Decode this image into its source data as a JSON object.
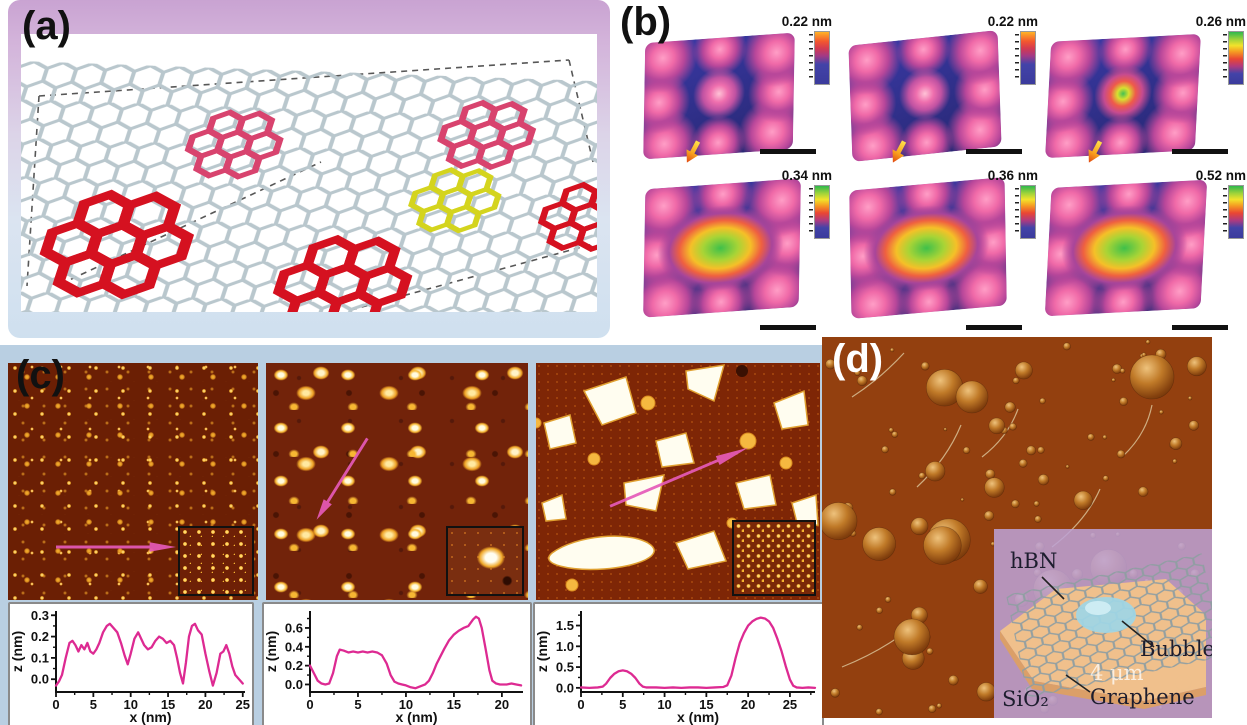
{
  "panel_a": {
    "label": "(a)"
  },
  "panel_b": {
    "label": "(b)",
    "images": [
      {
        "scale_label": "0.22 nm",
        "colorbar": "hot",
        "center_feature": "small"
      },
      {
        "scale_label": "0.22 nm",
        "colorbar": "hot",
        "center_feature": "small"
      },
      {
        "scale_label": "0.26 nm",
        "colorbar": "rainbow",
        "center_feature": "ring"
      },
      {
        "scale_label": "0.34 nm",
        "colorbar": "rainbow",
        "center_feature": "mound"
      },
      {
        "scale_label": "0.36 nm",
        "colorbar": "rainbow",
        "center_feature": "mound"
      },
      {
        "scale_label": "0.52 nm",
        "colorbar": "rainbow",
        "center_feature": "mound"
      }
    ]
  },
  "panel_c": {
    "label": "(c)"
  },
  "panel_d": {
    "label": "(d)",
    "inset": {
      "hbn_label": "hBN",
      "bubble_label": "Bubble",
      "graphene_label": "Graphene",
      "substrate_label": "SiO₂",
      "scale_text": "4 μm"
    }
  },
  "colors": {
    "profile_line": "#dd2a92",
    "afm_gold": "#f7b733",
    "afm_background": "#72230a",
    "stm_background": "#3a3aa8",
    "panel_d_background": "#93400f",
    "inset_lavender": "#bda2d6",
    "hbn_orange": "#f2c289",
    "bubble_cyan": "#a8dce8",
    "panel_c_background": "#b9cfe2"
  },
  "chart_data": [
    {
      "type": "line",
      "title": "",
      "xlabel": "x (nm)",
      "ylabel": "z (nm)",
      "xlim": [
        0,
        25.3
      ],
      "ylim": [
        -0.06,
        0.32
      ],
      "xticks": [
        0,
        5,
        10,
        15,
        20,
        25
      ],
      "yticks": [
        0.0,
        0.1,
        0.2,
        0.3
      ],
      "line_color": "#dd2a92",
      "grid": false,
      "legend": "none",
      "points": [
        [
          0,
          -0.03
        ],
        [
          0.4,
          -0.01
        ],
        [
          0.8,
          0.02
        ],
        [
          1.3,
          0.1
        ],
        [
          1.8,
          0.17
        ],
        [
          2.2,
          0.18
        ],
        [
          2.6,
          0.16
        ],
        [
          3,
          0.13
        ],
        [
          3.4,
          0.16
        ],
        [
          3.8,
          0.14
        ],
        [
          4.2,
          0.17
        ],
        [
          4.6,
          0.13
        ],
        [
          5,
          0.12
        ],
        [
          5.4,
          0.14
        ],
        [
          5.8,
          0.17
        ],
        [
          6.3,
          0.22
        ],
        [
          6.8,
          0.25
        ],
        [
          7.2,
          0.26
        ],
        [
          7.7,
          0.24
        ],
        [
          8.2,
          0.22
        ],
        [
          8.7,
          0.17
        ],
        [
          9.2,
          0.11
        ],
        [
          9.6,
          0.07
        ],
        [
          10,
          0.12
        ],
        [
          10.5,
          0.19
        ],
        [
          11,
          0.22
        ],
        [
          11.4,
          0.19
        ],
        [
          11.8,
          0.16
        ],
        [
          12.3,
          0.14
        ],
        [
          12.8,
          0.15
        ],
        [
          13.3,
          0.18
        ],
        [
          13.8,
          0.2
        ],
        [
          14.3,
          0.19
        ],
        [
          14.8,
          0.17
        ],
        [
          15.3,
          0.18
        ],
        [
          15.8,
          0.16
        ],
        [
          16.2,
          0.1
        ],
        [
          16.6,
          0.03
        ],
        [
          17,
          -0.02
        ],
        [
          17.4,
          0.08
        ],
        [
          17.8,
          0.2
        ],
        [
          18.2,
          0.25
        ],
        [
          18.6,
          0.26
        ],
        [
          19,
          0.23
        ],
        [
          19.5,
          0.21
        ],
        [
          20,
          0.12
        ],
        [
          20.5,
          0.04
        ],
        [
          21,
          -0.03
        ],
        [
          21.5,
          0.03
        ],
        [
          22,
          0.12
        ],
        [
          22.4,
          0.13
        ],
        [
          22.8,
          0.16
        ],
        [
          23.2,
          0.12
        ],
        [
          23.6,
          0.06
        ],
        [
          24,
          0.02
        ],
        [
          24.5,
          0
        ],
        [
          25,
          -0.02
        ]
      ]
    },
    {
      "type": "line",
      "title": "",
      "xlabel": "x (nm)",
      "ylabel": "z (nm)",
      "xlim": [
        0,
        22.2
      ],
      "ylim": [
        -0.08,
        0.78
      ],
      "xticks": [
        0,
        5,
        10,
        15,
        20
      ],
      "yticks": [
        0.0,
        0.2,
        0.4,
        0.6
      ],
      "line_color": "#dd2a92",
      "grid": false,
      "legend": "none",
      "points": [
        [
          0,
          0.2
        ],
        [
          0.4,
          0.12
        ],
        [
          0.8,
          0.04
        ],
        [
          1.2,
          0.01
        ],
        [
          1.6,
          0
        ],
        [
          2,
          0.01
        ],
        [
          2.4,
          0.12
        ],
        [
          2.8,
          0.3
        ],
        [
          3.1,
          0.37
        ],
        [
          3.5,
          0.36
        ],
        [
          4,
          0.34
        ],
        [
          4.5,
          0.35
        ],
        [
          5,
          0.34
        ],
        [
          5.5,
          0.35
        ],
        [
          6,
          0.34
        ],
        [
          6.5,
          0.35
        ],
        [
          7,
          0.34
        ],
        [
          7.5,
          0.31
        ],
        [
          8,
          0.22
        ],
        [
          8.4,
          0.1
        ],
        [
          8.8,
          0.03
        ],
        [
          9.2,
          0.01
        ],
        [
          9.6,
          0
        ],
        [
          10,
          -0.01
        ],
        [
          10.5,
          -0.03
        ],
        [
          11,
          -0.04
        ],
        [
          11.5,
          -0.02
        ],
        [
          12,
          0
        ],
        [
          12.4,
          0.04
        ],
        [
          12.8,
          0.12
        ],
        [
          13.2,
          0.22
        ],
        [
          13.6,
          0.3
        ],
        [
          14,
          0.38
        ],
        [
          14.5,
          0.47
        ],
        [
          15,
          0.53
        ],
        [
          15.5,
          0.57
        ],
        [
          16,
          0.6
        ],
        [
          16.5,
          0.62
        ],
        [
          17,
          0.69
        ],
        [
          17.3,
          0.72
        ],
        [
          17.6,
          0.7
        ],
        [
          17.9,
          0.6
        ],
        [
          18.3,
          0.38
        ],
        [
          18.7,
          0.15
        ],
        [
          19,
          0.04
        ],
        [
          19.4,
          0.01
        ],
        [
          19.8,
          0
        ],
        [
          20.5,
          0
        ],
        [
          21,
          0.01
        ],
        [
          21.5,
          0
        ],
        [
          22,
          -0.01
        ]
      ]
    },
    {
      "type": "line",
      "title": "",
      "xlabel": "x (nm)",
      "ylabel": "z (nm)",
      "xlim": [
        0,
        28
      ],
      "ylim": [
        -0.1,
        1.85
      ],
      "xticks": [
        0,
        5,
        10,
        15,
        20,
        25
      ],
      "yticks": [
        0.0,
        0.5,
        1.0,
        1.5
      ],
      "line_color": "#dd2a92",
      "grid": false,
      "legend": "none",
      "points": [
        [
          0,
          0.01
        ],
        [
          1,
          0
        ],
        [
          2,
          0.01
        ],
        [
          2.6,
          0.03
        ],
        [
          3,
          0.1
        ],
        [
          3.5,
          0.24
        ],
        [
          4,
          0.34
        ],
        [
          4.5,
          0.4
        ],
        [
          5,
          0.42
        ],
        [
          5.5,
          0.4
        ],
        [
          6,
          0.34
        ],
        [
          6.5,
          0.24
        ],
        [
          7,
          0.1
        ],
        [
          7.4,
          0.03
        ],
        [
          7.8,
          0.01
        ],
        [
          9,
          0.01
        ],
        [
          10,
          0
        ],
        [
          11,
          0.01
        ],
        [
          12,
          0
        ],
        [
          13,
          0.01
        ],
        [
          14,
          0.01
        ],
        [
          15,
          0
        ],
        [
          16,
          0.01
        ],
        [
          17,
          0.02
        ],
        [
          17.5,
          0.06
        ],
        [
          18,
          0.3
        ],
        [
          18.5,
          0.72
        ],
        [
          19,
          1.08
        ],
        [
          19.5,
          1.32
        ],
        [
          20,
          1.5
        ],
        [
          20.5,
          1.6
        ],
        [
          21,
          1.66
        ],
        [
          21.5,
          1.69
        ],
        [
          22,
          1.67
        ],
        [
          22.5,
          1.6
        ],
        [
          23,
          1.44
        ],
        [
          23.5,
          1.18
        ],
        [
          24,
          0.88
        ],
        [
          24.5,
          0.52
        ],
        [
          25,
          0.2
        ],
        [
          25.4,
          0.05
        ],
        [
          25.8,
          0.01
        ],
        [
          26.5,
          0
        ],
        [
          27.2,
          0.01
        ],
        [
          28,
          0
        ]
      ]
    }
  ]
}
